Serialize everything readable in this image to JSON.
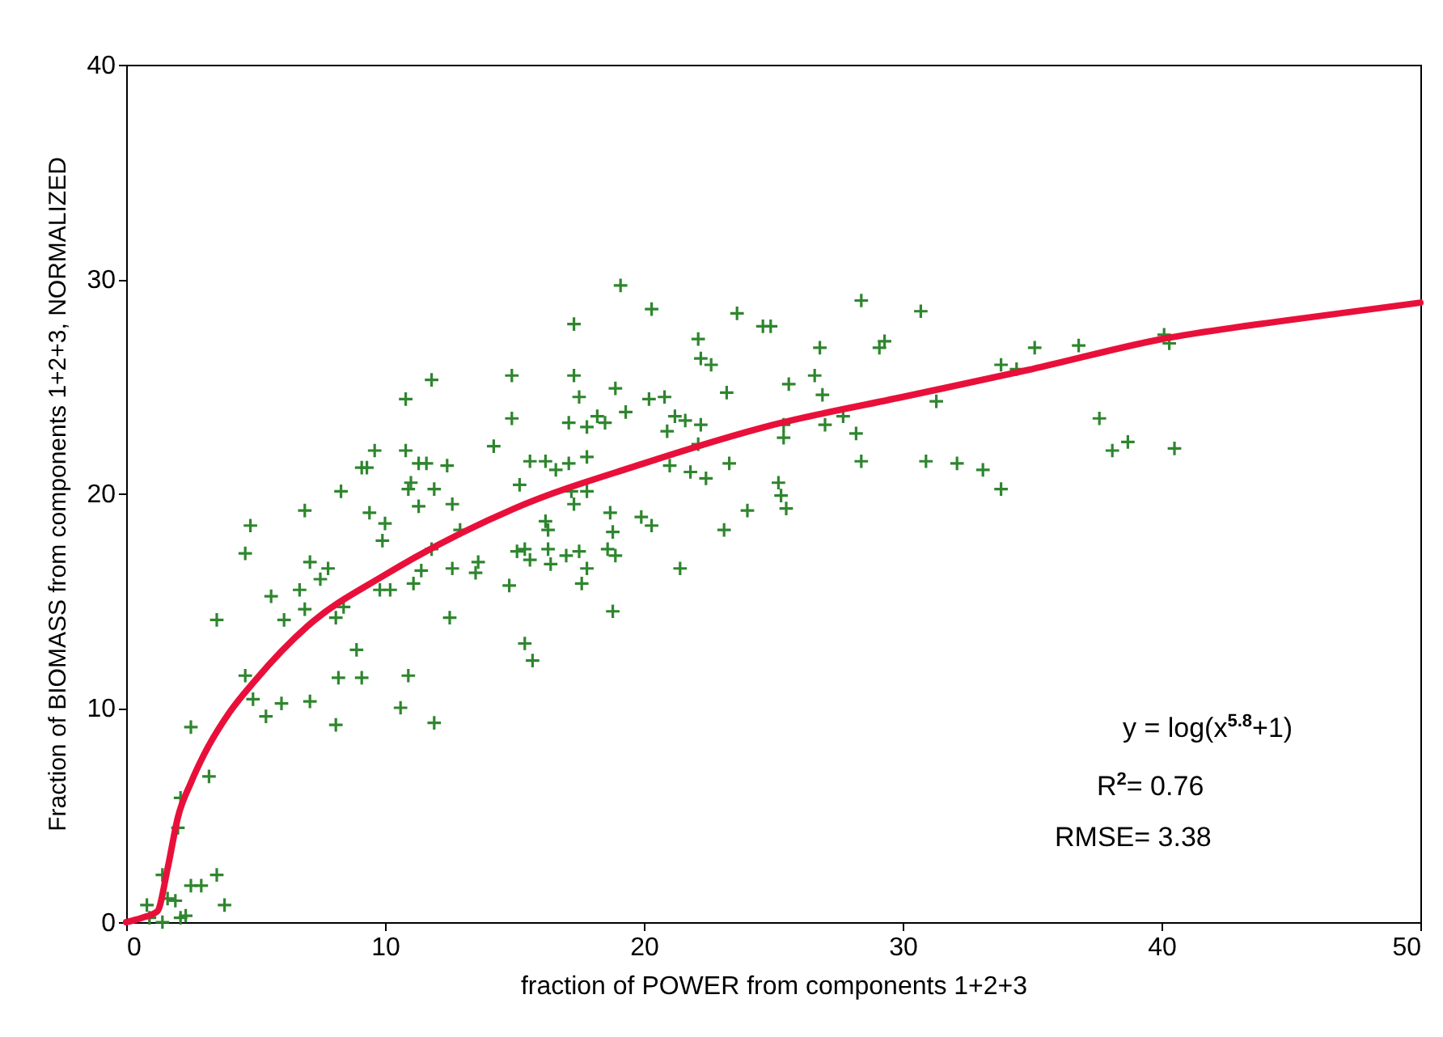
{
  "chart_data": {
    "type": "scatter",
    "xlabel": "fraction of POWER from components 1+2+3",
    "ylabel": "Fraction of BIOMASS from components 1+2+3, NORMALIZED",
    "xlim": [
      0,
      50
    ],
    "ylim": [
      0,
      40
    ],
    "xticks": [
      0,
      10,
      20,
      30,
      40,
      50
    ],
    "yticks": [
      0,
      10,
      20,
      30,
      40
    ],
    "grid": false,
    "annotations": [
      "y = log(x$^{5.8}$+1)",
      "R$^{2}$= 0.76",
      "RMSE= 3.38"
    ],
    "series": [
      {
        "marker": "cross",
        "color": "#2e862e",
        "x": [
          11.8,
          10.8,
          14.9,
          14.9,
          14.2,
          9.6,
          10.8,
          9.1,
          9.3,
          11.3,
          11.6,
          12.4,
          8.3,
          11.0,
          10.9,
          11.9,
          11.3,
          12.6,
          9.4,
          10.0,
          6.9,
          4.8,
          4.6,
          9.9,
          11.8,
          12.9,
          13.6,
          13.5,
          12.6,
          11.4,
          11.1,
          14.8,
          7.1,
          7.8,
          7.5,
          6.7,
          5.6,
          6.1,
          6.9,
          8.4,
          8.1,
          9.8,
          10.2,
          12.5,
          3.5,
          8.9,
          8.2,
          9.1,
          10.9,
          4.6,
          4.9,
          5.4,
          6.0,
          7.1,
          8.1,
          10.6,
          11.9,
          2.5,
          3.2,
          2.1,
          2.0,
          3.5,
          2.9,
          2.5,
          1.4,
          1.6,
          1.9,
          3.8,
          0.8,
          2.1,
          2.3,
          1.4,
          0.9,
          19.1,
          20.3,
          17.3,
          23.6,
          24.6,
          24.9,
          28.4,
          30.7,
          22.1,
          22.2,
          22.6,
          26.8,
          29.3,
          29.1,
          17.3,
          18.9,
          17.5,
          20.2,
          20.8,
          19.3,
          23.2,
          25.6,
          26.6,
          17.1,
          17.8,
          18.2,
          18.5,
          21.2,
          21.6,
          22.2,
          20.9,
          26.9,
          27.7,
          27.0,
          25.4,
          25.4,
          28.2,
          31.3,
          15.6,
          16.2,
          17.1,
          17.8,
          21.0,
          21.8,
          23.3,
          22.4,
          22.1,
          28.4,
          30.9,
          15.2,
          16.6,
          17.2,
          17.3,
          17.8,
          16.2,
          16.3,
          18.7,
          18.8,
          19.9,
          20.3,
          25.2,
          25.3,
          25.5,
          24.0,
          23.1,
          15.1,
          15.4,
          15.6,
          16.3,
          16.4,
          17.0,
          17.5,
          18.6,
          18.9,
          17.8,
          17.6,
          21.4,
          18.8,
          15.4,
          15.7,
          35.1,
          36.8,
          40.1,
          40.3,
          34.4,
          33.8,
          32.1,
          33.1,
          33.8,
          37.6,
          38.1,
          38.7,
          40.5
        ],
        "values": [
          25.3,
          24.4,
          25.5,
          23.5,
          22.2,
          22.0,
          22.0,
          21.2,
          21.2,
          21.4,
          21.4,
          21.3,
          20.1,
          20.5,
          20.2,
          20.2,
          19.4,
          19.5,
          19.1,
          18.6,
          19.2,
          18.5,
          17.2,
          17.8,
          17.4,
          18.3,
          16.8,
          16.3,
          16.5,
          16.4,
          15.8,
          15.7,
          16.8,
          16.5,
          16.0,
          15.5,
          15.2,
          14.1,
          14.6,
          14.7,
          14.2,
          15.5,
          15.5,
          14.2,
          14.1,
          12.7,
          11.4,
          11.4,
          11.5,
          11.5,
          10.4,
          9.6,
          10.2,
          10.3,
          9.2,
          10.0,
          9.3,
          9.1,
          6.8,
          5.8,
          4.4,
          2.2,
          1.7,
          1.7,
          2.2,
          1.1,
          1.0,
          0.8,
          0.8,
          0.2,
          0.3,
          0.0,
          0.2,
          29.7,
          28.6,
          27.9,
          28.4,
          27.8,
          27.8,
          29.0,
          28.5,
          27.2,
          26.3,
          26.0,
          26.8,
          27.1,
          26.8,
          25.5,
          24.9,
          24.5,
          24.4,
          24.5,
          23.8,
          24.7,
          25.1,
          25.5,
          23.3,
          23.1,
          23.6,
          23.3,
          23.6,
          23.4,
          23.2,
          22.9,
          24.6,
          23.6,
          23.2,
          23.2,
          22.6,
          22.8,
          24.3,
          21.5,
          21.5,
          21.4,
          21.7,
          21.3,
          21.0,
          21.4,
          20.7,
          22.3,
          21.5,
          21.5,
          20.4,
          21.1,
          20.1,
          19.5,
          20.1,
          18.7,
          18.3,
          19.1,
          18.2,
          18.9,
          18.5,
          20.5,
          19.9,
          19.3,
          19.2,
          18.3,
          17.3,
          17.4,
          16.9,
          17.4,
          16.7,
          17.1,
          17.3,
          17.4,
          17.1,
          16.5,
          15.8,
          16.5,
          14.5,
          13.0,
          12.2,
          26.8,
          26.9,
          27.4,
          27.0,
          25.8,
          26.0,
          21.4,
          21.1,
          20.2,
          23.5,
          22.0,
          22.4,
          22.1
        ]
      },
      {
        "type": "line",
        "marker": "none",
        "color": "#e8103a",
        "x": [
          0,
          0.6,
          1.2,
          1.6,
          2,
          2.5,
          3,
          4,
          5,
          7,
          10,
          15,
          20,
          25,
          30,
          35,
          40,
          45,
          50
        ],
        "values": [
          0,
          0.2,
          0.5,
          2.5,
          4.9,
          6.5,
          7.8,
          9.8,
          11.3,
          13.8,
          16.2,
          19.3,
          21.4,
          23.2,
          24.5,
          25.8,
          27.2,
          28.1,
          28.9
        ]
      }
    ]
  }
}
